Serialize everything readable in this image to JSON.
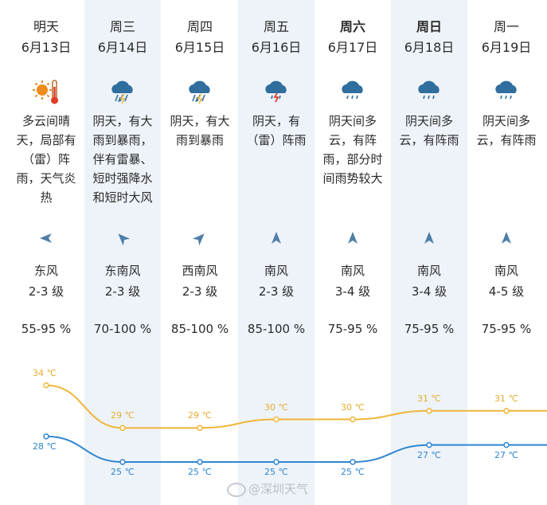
{
  "days": [
    {
      "name": "明天",
      "date": "6月13日",
      "icon": "sunny-hot-icon",
      "desc": [
        "多云间晴",
        "天，局部有",
        "（雷）阵",
        "雨，天气炎",
        "热"
      ],
      "wind_icon": "wind-east-arrow-icon",
      "wind_dir": "东风",
      "wind_level": "2-3 级",
      "humidity": "55-95 %",
      "high": "34 ℃",
      "low": "28 ℃",
      "bold": false
    },
    {
      "name": "周三",
      "date": "6月14日",
      "icon": "heavy-rain-icon",
      "desc": [
        "阴天，有大",
        "雨到暴雨，",
        "伴有雷暴、",
        "短时强降水",
        "和短时大风"
      ],
      "wind_icon": "wind-southeast-arrow-icon",
      "wind_dir": "东南风",
      "wind_level": "2-3 级",
      "humidity": "70-100 %",
      "high": "29 ℃",
      "low": "25 ℃",
      "bold": false
    },
    {
      "name": "周四",
      "date": "6月15日",
      "icon": "heavy-rain-icon",
      "desc": [
        "阴天，有大",
        "雨到暴雨"
      ],
      "wind_icon": "wind-southwest-arrow-icon",
      "wind_dir": "西南风",
      "wind_level": "2-3 级",
      "humidity": "85-100 %",
      "high": "29 ℃",
      "low": "25 ℃",
      "bold": false
    },
    {
      "name": "周五",
      "date": "6月16日",
      "icon": "thunder-shower-icon",
      "desc": [
        "阴天，有",
        "（雷）阵雨"
      ],
      "wind_icon": "wind-south-arrow-icon",
      "wind_dir": "南风",
      "wind_level": "2-3 级",
      "humidity": "85-100 %",
      "high": "30 ℃",
      "low": "25 ℃",
      "bold": false
    },
    {
      "name": "周六",
      "date": "6月17日",
      "icon": "shower-icon",
      "desc": [
        "阴天间多",
        "云，有阵",
        "雨，部分时",
        "间雨势较大"
      ],
      "wind_icon": "wind-south-arrow-icon",
      "wind_dir": "南风",
      "wind_level": "3-4 级",
      "humidity": "75-95 %",
      "high": "30 ℃",
      "low": "25 ℃",
      "bold": true
    },
    {
      "name": "周日",
      "date": "6月18日",
      "icon": "shower-icon",
      "desc": [
        "阴天间多",
        "云，有阵雨"
      ],
      "wind_icon": "wind-south-arrow-icon",
      "wind_dir": "南风",
      "wind_level": "3-4 级",
      "humidity": "75-95 %",
      "high": "31 ℃",
      "low": "27 ℃",
      "bold": true
    },
    {
      "name": "周一",
      "date": "6月19日",
      "icon": "shower-icon",
      "desc": [
        "阴天间多",
        "云，有阵雨"
      ],
      "wind_icon": "wind-south-arrow-icon",
      "wind_dir": "南风",
      "wind_level": "4-5 级",
      "humidity": "75-95 %",
      "high": "31 ℃",
      "low": "27 ℃",
      "bold": false
    }
  ],
  "chart_data": {
    "type": "line",
    "categories": [
      "6月13日",
      "6月14日",
      "6月15日",
      "6月16日",
      "6月17日",
      "6月18日",
      "6月19日"
    ],
    "series": [
      {
        "values": [
          34,
          29,
          29,
          30,
          30,
          31,
          31
        ],
        "labels": [
          "34 ℃",
          "29 ℃",
          "29 ℃",
          "30 ℃",
          "30 ℃",
          "31 ℃",
          "31 ℃"
        ],
        "color": "#f0b63a"
      },
      {
        "values": [
          28,
          25,
          25,
          25,
          25,
          27,
          27
        ],
        "labels": [
          "28 ℃",
          "25 ℃",
          "25 ℃",
          "25 ℃",
          "25 ℃",
          "27 ℃",
          "27 ℃"
        ],
        "color": "#2e86d1"
      }
    ]
  },
  "watermark": "@深圳天气",
  "colors": {
    "shade": "#eef3f9",
    "high": "#f0b63a",
    "low": "#2e86d1",
    "arrow": "#4f7ea8"
  }
}
